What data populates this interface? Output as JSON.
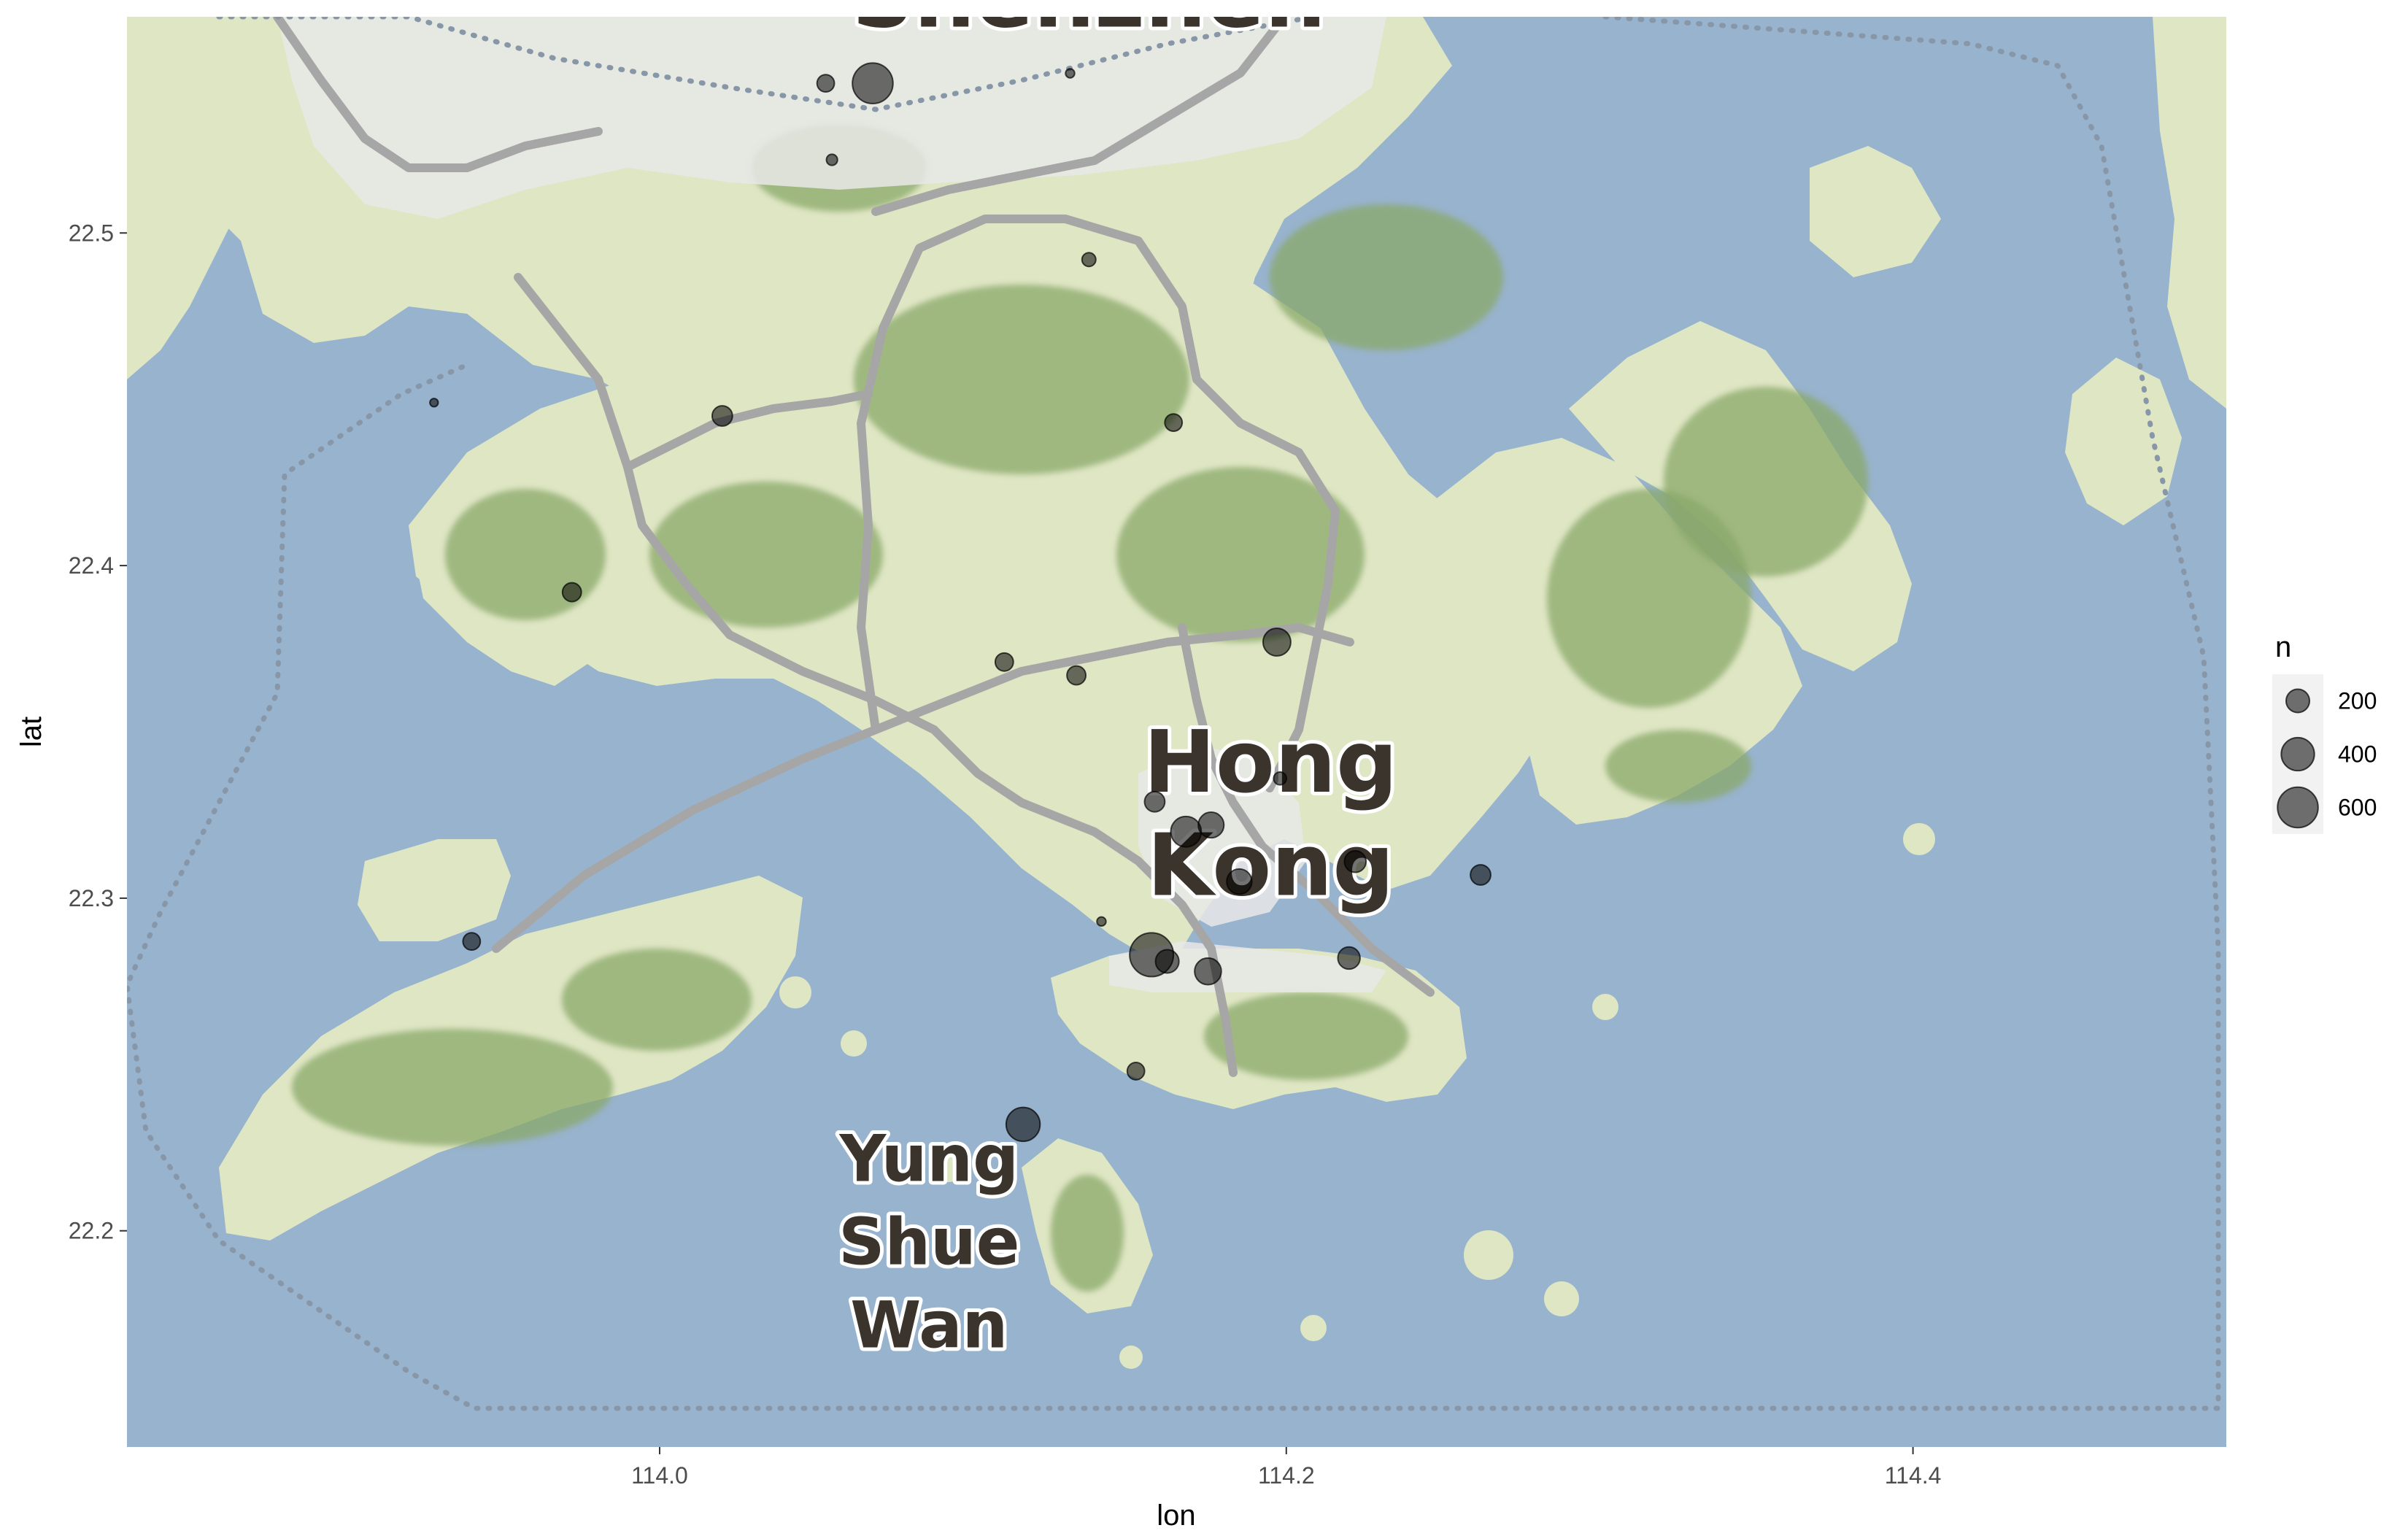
{
  "map": {
    "x_axis": {
      "title": "lon",
      "range": [
        113.83,
        114.5
      ],
      "ticks": [
        114.0,
        114.2,
        114.4
      ],
      "tick_labels": [
        "114.0",
        "114.2",
        "114.4"
      ]
    },
    "y_axis": {
      "title": "lat",
      "range": [
        22.135,
        22.565
      ],
      "ticks": [
        22.2,
        22.3,
        22.4,
        22.5
      ],
      "tick_labels": [
        "22.2",
        "22.3",
        "22.4",
        "22.5"
      ]
    },
    "place_labels": [
      {
        "text": "Shenzhen",
        "lon": 114.137,
        "lat": 22.562,
        "size": "large"
      },
      {
        "text": "Hong",
        "lon": 114.195,
        "lat": 22.332,
        "size": "large"
      },
      {
        "text": "Kong",
        "lon": 114.195,
        "lat": 22.301,
        "size": "large"
      },
      {
        "text": "Yung",
        "lon": 114.086,
        "lat": 22.215,
        "size": "medium"
      },
      {
        "text": "Shue",
        "lon": 114.086,
        "lat": 22.19,
        "size": "medium"
      },
      {
        "text": "Wan",
        "lon": 114.086,
        "lat": 22.165,
        "size": "medium"
      }
    ],
    "colors": {
      "water": "#98b3cd",
      "land": "#dfe6c4",
      "hills": "#8aa86a",
      "roads": "#a6a6a6",
      "urban": "#e8e8e8",
      "border": "#8797a8",
      "points": "#000000"
    },
    "points": [
      {
        "lon": 114.068,
        "lat": 22.545,
        "n": 600
      },
      {
        "lon": 114.053,
        "lat": 22.545,
        "n": 110
      },
      {
        "lon": 114.055,
        "lat": 22.522,
        "n": 45
      },
      {
        "lon": 114.131,
        "lat": 22.548,
        "n": 30
      },
      {
        "lon": 114.137,
        "lat": 22.492,
        "n": 70
      },
      {
        "lon": 113.928,
        "lat": 22.449,
        "n": 25
      },
      {
        "lon": 114.02,
        "lat": 22.445,
        "n": 150
      },
      {
        "lon": 114.164,
        "lat": 22.443,
        "n": 110
      },
      {
        "lon": 113.972,
        "lat": 22.392,
        "n": 130
      },
      {
        "lon": 114.197,
        "lat": 22.377,
        "n": 280
      },
      {
        "lon": 114.11,
        "lat": 22.371,
        "n": 120
      },
      {
        "lon": 114.133,
        "lat": 22.367,
        "n": 130
      },
      {
        "lon": 114.158,
        "lat": 22.329,
        "n": 150
      },
      {
        "lon": 114.198,
        "lat": 22.336,
        "n": 60
      },
      {
        "lon": 114.168,
        "lat": 22.32,
        "n": 340
      },
      {
        "lon": 114.176,
        "lat": 22.322,
        "n": 240
      },
      {
        "lon": 114.185,
        "lat": 22.305,
        "n": 230
      },
      {
        "lon": 114.222,
        "lat": 22.311,
        "n": 170
      },
      {
        "lon": 114.262,
        "lat": 22.307,
        "n": 150
      },
      {
        "lon": 113.94,
        "lat": 22.287,
        "n": 110
      },
      {
        "lon": 114.141,
        "lat": 22.293,
        "n": 30
      },
      {
        "lon": 114.157,
        "lat": 22.283,
        "n": 700
      },
      {
        "lon": 114.162,
        "lat": 22.281,
        "n": 200
      },
      {
        "lon": 114.175,
        "lat": 22.278,
        "n": 260
      },
      {
        "lon": 114.22,
        "lat": 22.282,
        "n": 180
      },
      {
        "lon": 114.152,
        "lat": 22.248,
        "n": 110
      },
      {
        "lon": 114.116,
        "lat": 22.232,
        "n": 420
      }
    ],
    "legend": {
      "title": "n",
      "entries": [
        {
          "label": "200",
          "n": 200
        },
        {
          "label": "400",
          "n": 400
        },
        {
          "label": "600",
          "n": 600
        }
      ],
      "max_n": 700
    }
  }
}
